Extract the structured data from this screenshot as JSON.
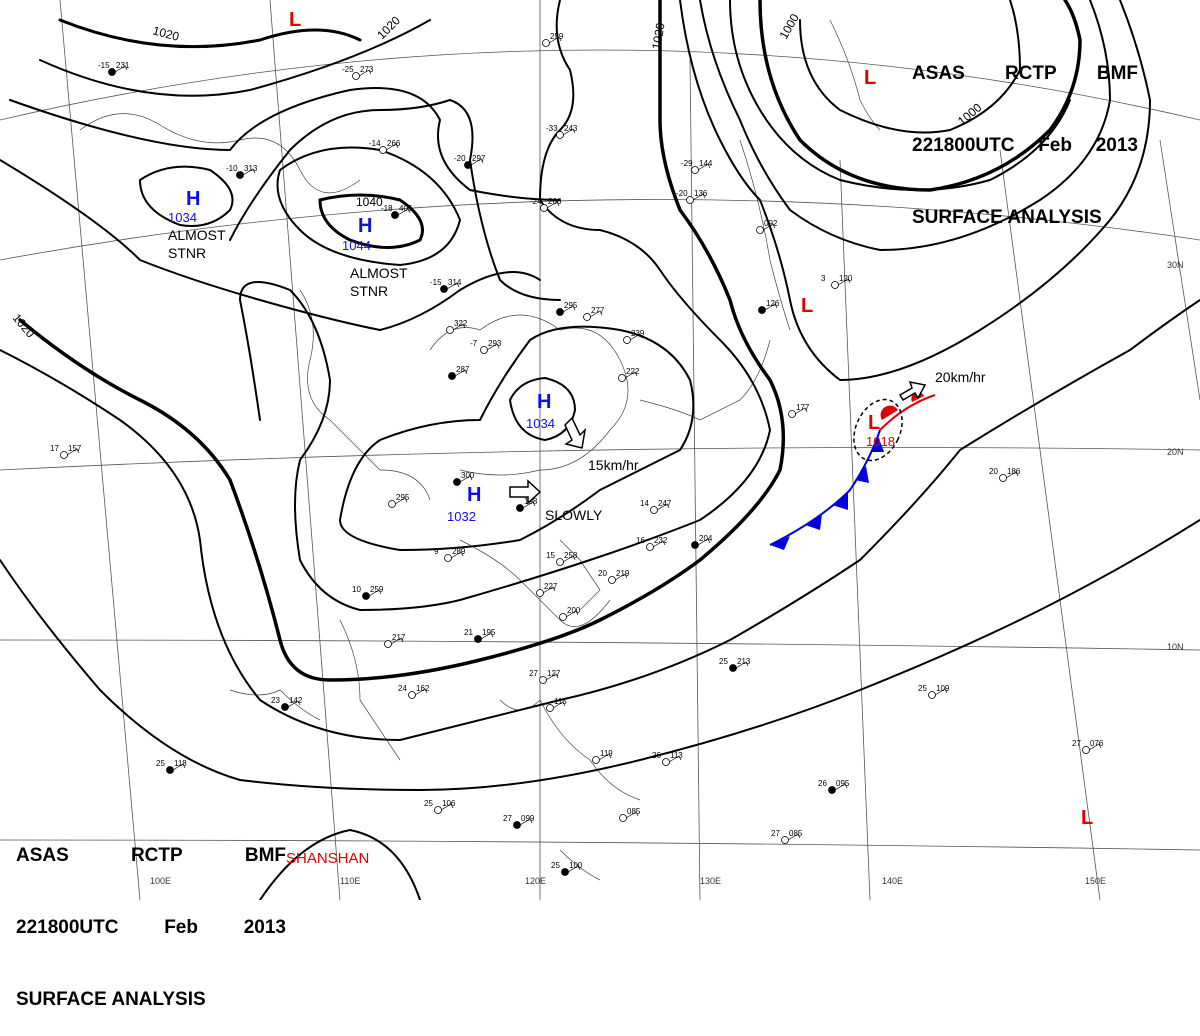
{
  "title_block": {
    "agency": [
      "ASAS",
      "RCTP",
      "BMF"
    ],
    "time": [
      "221800UTC",
      "Feb",
      "2013"
    ],
    "product": "SURFACE ANALYSIS"
  },
  "signature": "SHANSHAN",
  "isobar_labels": [
    "1020",
    "1020",
    "1020",
    "1020",
    "1040",
    "1000",
    "1000"
  ],
  "highs": [
    {
      "symbol": "H",
      "pressure": "1034",
      "note": "ALMOST\nSTNR"
    },
    {
      "symbol": "H",
      "pressure": "1044",
      "note": "ALMOST\nSTNR"
    },
    {
      "symbol": "H",
      "pressure": "1034",
      "motion": "15km/hr"
    },
    {
      "symbol": "H",
      "pressure": "1032",
      "motion": "SLOWLY"
    }
  ],
  "lows": [
    {
      "symbol": "L",
      "pressure": "1018",
      "motion": "20km/hr"
    },
    {
      "symbol": "L"
    },
    {
      "symbol": "L"
    },
    {
      "symbol": "L"
    },
    {
      "symbol": "L"
    }
  ],
  "lat_labels": [
    "30N",
    "20N",
    "10N"
  ],
  "lon_labels": [
    "100E",
    "110E",
    "120E",
    "130E",
    "140E",
    "150E"
  ],
  "stations": [
    {
      "t": "-15",
      "p": "231"
    },
    {
      "t": "-25",
      "p": "273"
    },
    {
      "t": "",
      "p": "259"
    },
    {
      "t": "-10",
      "p": "313"
    },
    {
      "t": "-14",
      "p": "266"
    },
    {
      "t": "-33",
      "p": "243"
    },
    {
      "t": "-20",
      "p": "297"
    },
    {
      "t": "-29",
      "p": "144"
    },
    {
      "t": "-20",
      "p": "136"
    },
    {
      "t": "-18",
      "p": "405"
    },
    {
      "t": "-24",
      "p": "266"
    },
    {
      "t": "",
      "p": "092"
    },
    {
      "t": "-15",
      "p": "314"
    },
    {
      "t": "",
      "p": "322"
    },
    {
      "t": "-7",
      "p": "293"
    },
    {
      "t": "",
      "p": "295"
    },
    {
      "t": "",
      "p": "277"
    },
    {
      "t": "",
      "p": "239"
    },
    {
      "t": "",
      "p": "287"
    },
    {
      "t": "",
      "p": "222"
    },
    {
      "t": "3",
      "p": "120"
    },
    {
      "t": "",
      "p": "126"
    },
    {
      "t": "",
      "p": "177"
    },
    {
      "t": "17",
      "p": "157"
    },
    {
      "t": "",
      "p": "300"
    },
    {
      "t": "",
      "p": "295"
    },
    {
      "t": "9",
      "p": "289"
    },
    {
      "t": "",
      "p": "198"
    },
    {
      "t": "14",
      "p": "247"
    },
    {
      "t": "16",
      "p": "232"
    },
    {
      "t": "",
      "p": "204"
    },
    {
      "t": "15",
      "p": "258"
    },
    {
      "t": "20",
      "p": "219"
    },
    {
      "t": "10",
      "p": "259"
    },
    {
      "t": "",
      "p": "227"
    },
    {
      "t": "",
      "p": "200"
    },
    {
      "t": "21",
      "p": "195"
    },
    {
      "t": "",
      "p": "217"
    },
    {
      "t": "24",
      "p": "162"
    },
    {
      "t": "23",
      "p": "142"
    },
    {
      "t": "27",
      "p": "127"
    },
    {
      "t": "",
      "p": "115"
    },
    {
      "t": "25",
      "p": "213"
    },
    {
      "t": "25",
      "p": "109"
    },
    {
      "t": "20",
      "p": "186"
    },
    {
      "t": "25",
      "p": "118"
    },
    {
      "t": "26",
      "p": "113"
    },
    {
      "t": "",
      "p": "119"
    },
    {
      "t": "26",
      "p": "095"
    },
    {
      "t": "27",
      "p": "076"
    },
    {
      "t": "25",
      "p": "106"
    },
    {
      "t": "27",
      "p": "099"
    },
    {
      "t": "",
      "p": "085"
    },
    {
      "t": "27",
      "p": "085"
    },
    {
      "t": "25",
      "p": "100"
    }
  ],
  "colors": {
    "front_cold": "#0000e0",
    "front_warm": "#e00000",
    "high": "#1010e0",
    "low": "#e00000",
    "isobar": "#000000"
  }
}
